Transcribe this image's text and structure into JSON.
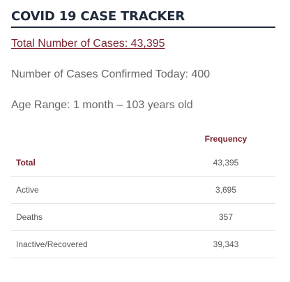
{
  "header": {
    "title": "COVID 19 CASE TRACKER"
  },
  "summary": {
    "total_cases": "Total Number of Cases: 43,395",
    "confirmed_today": "Number of Cases Confirmed Today: 400",
    "age_range": "Age Range: 1 month – 103 years old"
  },
  "table": {
    "column_label": "",
    "column_frequency": "Frequency",
    "rows": [
      {
        "label": "Total",
        "value": "43,395"
      },
      {
        "label": "Active",
        "value": "3,695"
      },
      {
        "label": "Deaths",
        "value": "357"
      },
      {
        "label": "Inactive/Recovered",
        "value": "39,343"
      }
    ]
  },
  "colors": {
    "title": "#1f2a3c",
    "accent": "#7a2430",
    "text": "#555555",
    "divider": "#e4e4e4"
  }
}
